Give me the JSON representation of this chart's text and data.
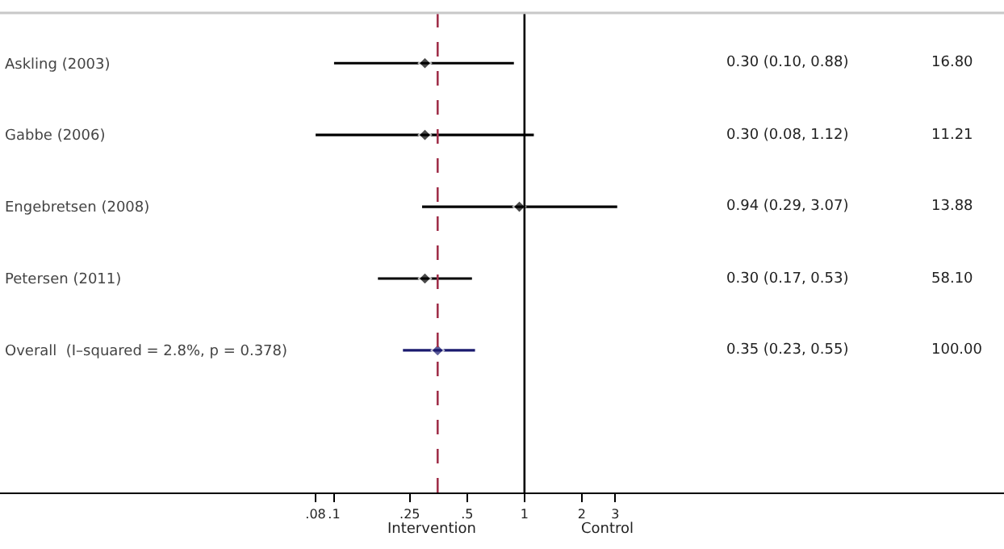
{
  "chart_data": {
    "type": "scatter",
    "orientation": "horizontal",
    "log": "x",
    "marker": "diamond",
    "categories": [
      "Askling (2003)",
      "Gabbe (2006)",
      "Engebretsen (2008)",
      "Petersen (2011)",
      "Overall  (I–squared = 2.8%, p = 0.378)"
    ],
    "series": [
      {
        "color": "#000000",
        "values": [
          0.3,
          0.3,
          0.94,
          0.3,
          null
        ],
        "errors": [
          [
            0.1,
            0.88
          ],
          [
            0.08,
            1.12
          ],
          [
            0.29,
            3.07
          ],
          [
            0.17,
            0.53
          ],
          null
        ]
      },
      {
        "color": "#1a1a6e",
        "values": [
          null,
          null,
          null,
          null,
          0.35
        ],
        "errors": [
          null,
          null,
          null,
          null,
          [
            0.23,
            0.55
          ]
        ]
      }
    ],
    "xlim": [
      0.00176,
      330
    ],
    "xticks": [
      {
        "value": 0.08,
        "label": ".08"
      },
      {
        "value": 0.1,
        "label": ".1"
      },
      {
        "value": 0.25,
        "label": ".25"
      },
      {
        "value": 0.5,
        "label": ".5"
      },
      1,
      2,
      3
    ],
    "ref_lines": [
      {
        "axis": "x",
        "value": 1,
        "color": "#000000",
        "line_style": "solid"
      },
      {
        "axis": "x",
        "value": 0.35,
        "color": "#a0304a",
        "line_style": "dashed"
      }
    ],
    "annotations": [
      "0.30 (0.10, 0.88)",
      "16.80",
      "0.30 (0.08, 1.12)",
      "11.21",
      "0.94 (0.29, 3.07)",
      "13.88",
      "0.30 (0.17, 0.53)",
      "58.10",
      "0.35 (0.23, 0.55)",
      "100.00",
      "Intervention",
      "Control"
    ],
    "grid": false
  }
}
